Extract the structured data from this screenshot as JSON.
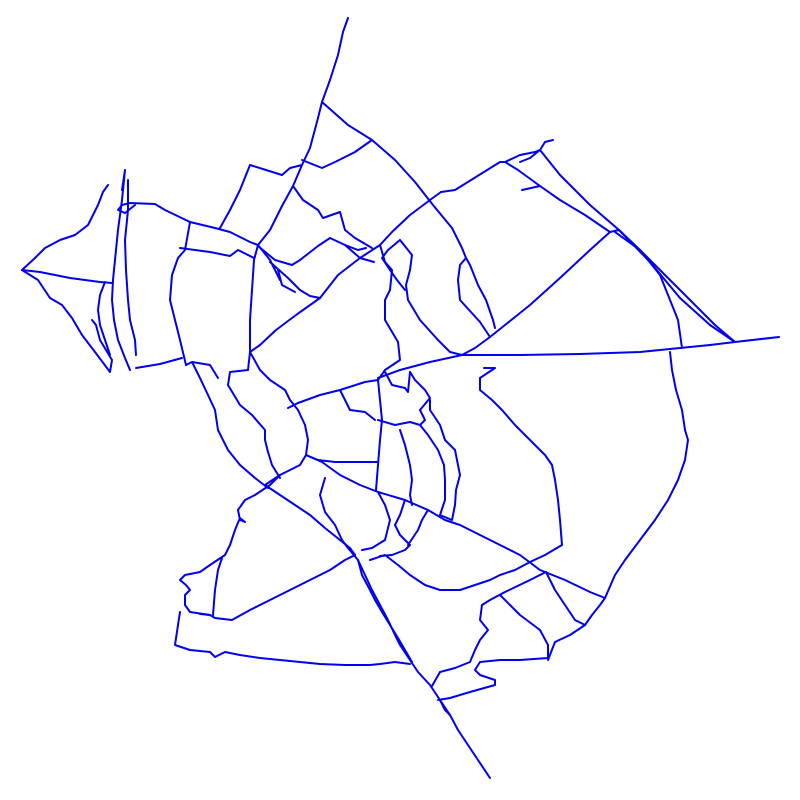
{
  "map": {
    "background": "#ffffff",
    "line_color": "#0000ee",
    "features": [
      "street-network"
    ]
  }
}
